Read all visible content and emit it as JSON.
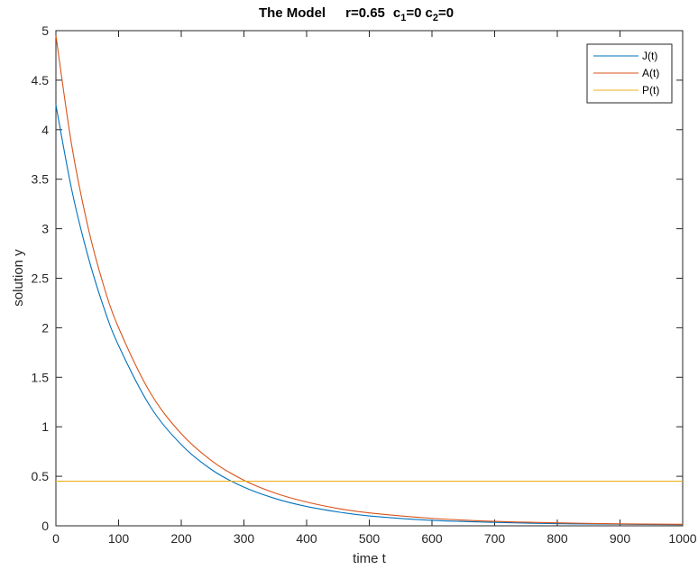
{
  "chart_data": {
    "type": "line",
    "title": {
      "prefix": "The Model",
      "r": "r=0.65",
      "c1_base": "c",
      "c1_sub": "1",
      "c1_val": "=0",
      "c2_base": "c",
      "c2_sub": "2",
      "c2_val": "=0"
    },
    "xlabel": "time t",
    "ylabel": "solution y",
    "xlim": [
      0,
      1000
    ],
    "ylim": [
      0,
      5
    ],
    "xticks": [
      0,
      100,
      200,
      300,
      400,
      500,
      600,
      700,
      800,
      900,
      1000
    ],
    "xtick_labels": [
      "0",
      "100",
      "200",
      "300",
      "400",
      "500",
      "600",
      "700",
      "800",
      "900",
      "1000"
    ],
    "yticks": [
      0,
      0.5,
      1,
      1.5,
      2,
      2.5,
      3,
      3.5,
      4,
      4.5,
      5
    ],
    "ytick_labels": [
      "0",
      "0.5",
      "1",
      "1.5",
      "2",
      "2.5",
      "3",
      "3.5",
      "4",
      "4.5",
      "5"
    ],
    "grid": false,
    "legend_position": "top-right",
    "series": [
      {
        "name": "J(t)",
        "color": "#0072BD",
        "x": [
          0,
          25,
          50,
          75,
          100,
          150,
          200,
          250,
          300,
          350,
          400,
          450,
          500,
          600,
          700,
          800,
          900,
          1000
        ],
        "y": [
          4.25,
          3.4,
          2.75,
          2.23,
          1.82,
          1.21,
          0.82,
          0.56,
          0.39,
          0.275,
          0.195,
          0.14,
          0.1,
          0.055,
          0.035,
          0.022,
          0.016,
          0.012
        ]
      },
      {
        "name": "A(t)",
        "color": "#D95319",
        "x": [
          0,
          25,
          50,
          75,
          100,
          150,
          200,
          250,
          300,
          350,
          400,
          450,
          500,
          600,
          700,
          800,
          900,
          1000
        ],
        "y": [
          4.95,
          3.85,
          3.05,
          2.45,
          2.0,
          1.35,
          0.93,
          0.65,
          0.46,
          0.33,
          0.24,
          0.175,
          0.13,
          0.075,
          0.045,
          0.03,
          0.02,
          0.015
        ]
      },
      {
        "name": "P(t)",
        "color": "#EDB120",
        "x": [
          0,
          1000
        ],
        "y": [
          0.45,
          0.45
        ]
      }
    ]
  }
}
